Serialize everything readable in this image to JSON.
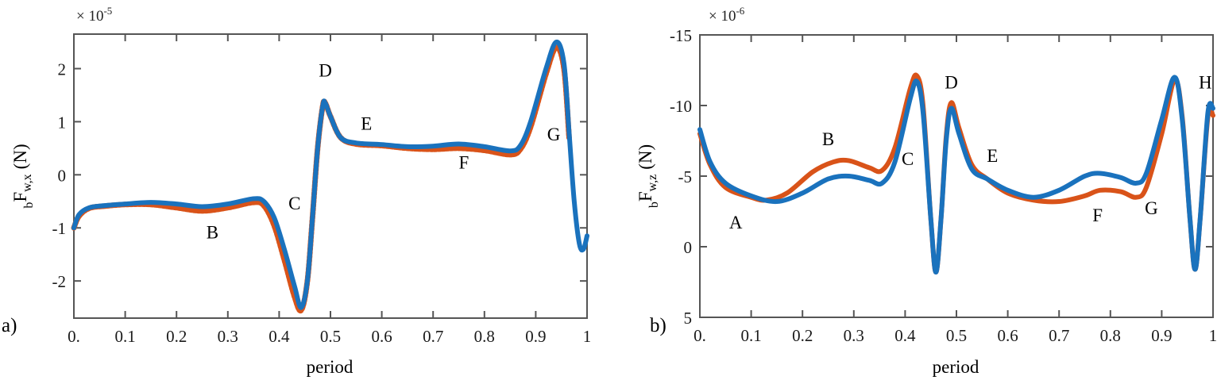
{
  "colors": {
    "blue": "#1a72bd",
    "orange": "#d95319",
    "axis": "#555555"
  },
  "chart_data": [
    {
      "type": "line",
      "panel": "a)",
      "title": "",
      "xlabel": "period",
      "ylabel": "bF w,x (N)",
      "ylabel_parts": {
        "pre_sub": "b",
        "main": "F",
        "sub": "w,x",
        "unit": "(N)"
      },
      "exponent": "× 10",
      "exponent_power": "-5",
      "xlim": [
        0,
        1
      ],
      "ylim": [
        -2.7,
        2.65
      ],
      "xticks": [
        0,
        0.1,
        0.2,
        0.3,
        0.4,
        0.5,
        0.6,
        0.7,
        0.8,
        0.9,
        1
      ],
      "xtick_labels": [
        "0.",
        "0.1",
        "0.2",
        "0.3",
        "0.4",
        "0.5",
        "0.6",
        "0.7",
        "0.8",
        "0.9",
        "1"
      ],
      "yticks": [
        -2,
        -1,
        0,
        1,
        2
      ],
      "ytick_labels": [
        "-2",
        "-1",
        "0",
        "1",
        "2"
      ],
      "grid": false,
      "annotations": [
        {
          "text": "B",
          "x": 0.27,
          "y": -1.2
        },
        {
          "text": "C",
          "x": 0.43,
          "y": -0.65
        },
        {
          "text": "D",
          "x": 0.49,
          "y": 1.85
        },
        {
          "text": "E",
          "x": 0.57,
          "y": 0.85
        },
        {
          "text": "F",
          "x": 0.76,
          "y": 0.12
        },
        {
          "text": "G",
          "x": 0.935,
          "y": 0.65
        }
      ],
      "series": [
        {
          "name": "series-orange",
          "color": "#d95319",
          "dashed": true,
          "x": [
            0,
            0.01,
            0.03,
            0.06,
            0.1,
            0.15,
            0.2,
            0.25,
            0.3,
            0.35,
            0.37,
            0.39,
            0.41,
            0.43,
            0.443,
            0.455,
            0.465,
            0.475,
            0.485,
            0.49,
            0.5,
            0.52,
            0.55,
            0.6,
            0.65,
            0.7,
            0.75,
            0.8,
            0.85,
            0.87,
            0.89,
            0.92,
            0.94,
            0.955,
            0.965
          ],
          "y": [
            -1.0,
            -0.78,
            -0.63,
            -0.59,
            -0.56,
            -0.56,
            -0.62,
            -0.68,
            -0.62,
            -0.52,
            -0.58,
            -0.95,
            -1.6,
            -2.3,
            -2.55,
            -2.0,
            -0.8,
            0.5,
            1.3,
            1.35,
            1.1,
            0.7,
            0.58,
            0.55,
            0.5,
            0.48,
            0.5,
            0.46,
            0.38,
            0.48,
            0.9,
            1.9,
            2.4,
            2.0,
            0.7
          ]
        },
        {
          "name": "series-blue",
          "color": "#1a72bd",
          "dashed": false,
          "x": [
            0,
            0.01,
            0.03,
            0.06,
            0.1,
            0.15,
            0.2,
            0.25,
            0.3,
            0.35,
            0.37,
            0.39,
            0.41,
            0.43,
            0.443,
            0.455,
            0.465,
            0.475,
            0.485,
            0.49,
            0.5,
            0.52,
            0.55,
            0.6,
            0.65,
            0.7,
            0.75,
            0.8,
            0.85,
            0.87,
            0.89,
            0.92,
            0.94,
            0.955,
            0.965,
            0.975,
            0.985,
            0.993,
            1.0
          ],
          "y": [
            -1.0,
            -0.75,
            -0.62,
            -0.58,
            -0.55,
            -0.52,
            -0.55,
            -0.6,
            -0.55,
            -0.45,
            -0.5,
            -0.8,
            -1.4,
            -2.1,
            -2.5,
            -2.0,
            -0.8,
            0.5,
            1.3,
            1.35,
            1.1,
            0.7,
            0.6,
            0.57,
            0.53,
            0.54,
            0.58,
            0.53,
            0.45,
            0.55,
            1.0,
            2.0,
            2.5,
            2.1,
            0.8,
            -0.5,
            -1.3,
            -1.4,
            -1.15
          ]
        }
      ]
    },
    {
      "type": "line",
      "panel": "b)",
      "title": "",
      "xlabel": "period",
      "ylabel": "bF w,z (N)",
      "ylabel_parts": {
        "pre_sub": "b",
        "main": "F",
        "sub": "w,z",
        "unit": "(N)"
      },
      "exponent": "× 10",
      "exponent_power": "-6",
      "xlim": [
        0,
        1
      ],
      "ylim": [
        5,
        -15
      ],
      "y_reversed": true,
      "xticks": [
        0,
        0.1,
        0.2,
        0.3,
        0.4,
        0.5,
        0.6,
        0.7,
        0.8,
        0.9,
        1
      ],
      "xtick_labels": [
        "0.",
        "0.1",
        "0.2",
        "0.3",
        "0.4",
        "0.5",
        "0.6",
        "0.7",
        "0.8",
        "0.9",
        "1"
      ],
      "yticks": [
        -15,
        -10,
        -5,
        0,
        5
      ],
      "ytick_labels": [
        "-15",
        "-10",
        "-5",
        "0",
        "5"
      ],
      "grid": false,
      "annotations": [
        {
          "text": "A",
          "x": 0.07,
          "y": -1.3
        },
        {
          "text": "B",
          "x": 0.25,
          "y": -7.2
        },
        {
          "text": "C",
          "x": 0.405,
          "y": -5.8
        },
        {
          "text": "D",
          "x": 0.49,
          "y": -11.2
        },
        {
          "text": "E",
          "x": 0.57,
          "y": -6.0
        },
        {
          "text": "F",
          "x": 0.775,
          "y": -1.8
        },
        {
          "text": "G",
          "x": 0.88,
          "y": -2.3
        },
        {
          "text": "H",
          "x": 0.985,
          "y": -11.2
        }
      ],
      "series": [
        {
          "name": "series-orange",
          "color": "#d95319",
          "dashed": false,
          "x": [
            0,
            0.02,
            0.05,
            0.1,
            0.13,
            0.17,
            0.22,
            0.26,
            0.29,
            0.33,
            0.355,
            0.38,
            0.41,
            0.423,
            0.435,
            0.45,
            0.46,
            0.47,
            0.48,
            0.49,
            0.505,
            0.53,
            0.56,
            0.6,
            0.65,
            0.7,
            0.75,
            0.78,
            0.82,
            0.85,
            0.87,
            0.9,
            0.925,
            0.94,
            0.955,
            0.965,
            0.975,
            0.99,
            1.0
          ],
          "y": [
            -8.0,
            -5.8,
            -4.2,
            -3.5,
            -3.3,
            -3.8,
            -5.3,
            -6.0,
            -6.1,
            -5.6,
            -5.4,
            -7.0,
            -11.2,
            -12.1,
            -10.0,
            -2.0,
            1.8,
            -2.0,
            -7.8,
            -10.2,
            -8.4,
            -5.8,
            -4.8,
            -3.8,
            -3.3,
            -3.2,
            -3.6,
            -4.0,
            -3.9,
            -3.5,
            -4.2,
            -8.0,
            -11.8,
            -9.2,
            -2.0,
            1.6,
            -2.0,
            -9.2,
            -9.3
          ]
        },
        {
          "name": "series-blue",
          "color": "#1a72bd",
          "dashed": false,
          "x": [
            0,
            0.02,
            0.05,
            0.1,
            0.15,
            0.2,
            0.25,
            0.29,
            0.33,
            0.355,
            0.38,
            0.41,
            0.423,
            0.435,
            0.45,
            0.46,
            0.47,
            0.48,
            0.49,
            0.505,
            0.53,
            0.56,
            0.6,
            0.65,
            0.7,
            0.75,
            0.78,
            0.82,
            0.85,
            0.87,
            0.9,
            0.925,
            0.94,
            0.955,
            0.965,
            0.975,
            0.99,
            1.0
          ],
          "y": [
            -8.3,
            -6.0,
            -4.5,
            -3.6,
            -3.2,
            -3.8,
            -4.8,
            -5.0,
            -4.7,
            -4.5,
            -6.0,
            -10.5,
            -11.7,
            -9.5,
            -2.0,
            1.8,
            -2.0,
            -7.5,
            -9.8,
            -8.0,
            -5.5,
            -4.8,
            -4.0,
            -3.5,
            -4.0,
            -5.0,
            -5.2,
            -4.9,
            -4.5,
            -5.2,
            -9.0,
            -12.0,
            -9.0,
            -2.0,
            1.6,
            -2.0,
            -9.5,
            -9.8
          ]
        }
      ]
    }
  ]
}
